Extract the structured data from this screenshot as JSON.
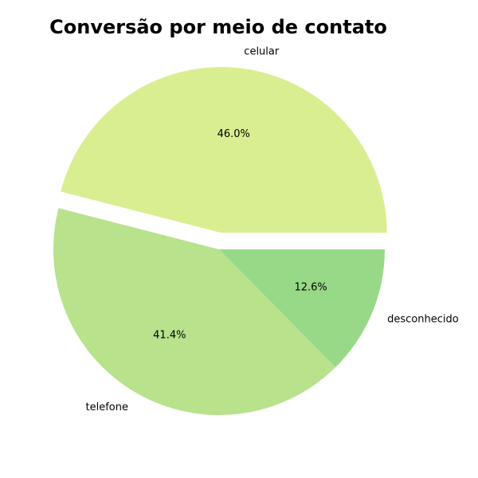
{
  "chart_data": {
    "type": "pie",
    "title": "Conversão por meio de contato",
    "slices": [
      {
        "label": "celular",
        "value": 46.0,
        "pct_label": "46.0%",
        "color": "#d9ee91",
        "exploded": true
      },
      {
        "label": "telefone",
        "value": 41.4,
        "pct_label": "41.4%",
        "color": "#b8e28c",
        "exploded": false
      },
      {
        "label": "desconhecido",
        "value": 12.6,
        "pct_label": "12.6%",
        "color": "#98d987",
        "exploded": false
      }
    ],
    "start_angle_deg": 0,
    "direction": "counterclockwise"
  }
}
